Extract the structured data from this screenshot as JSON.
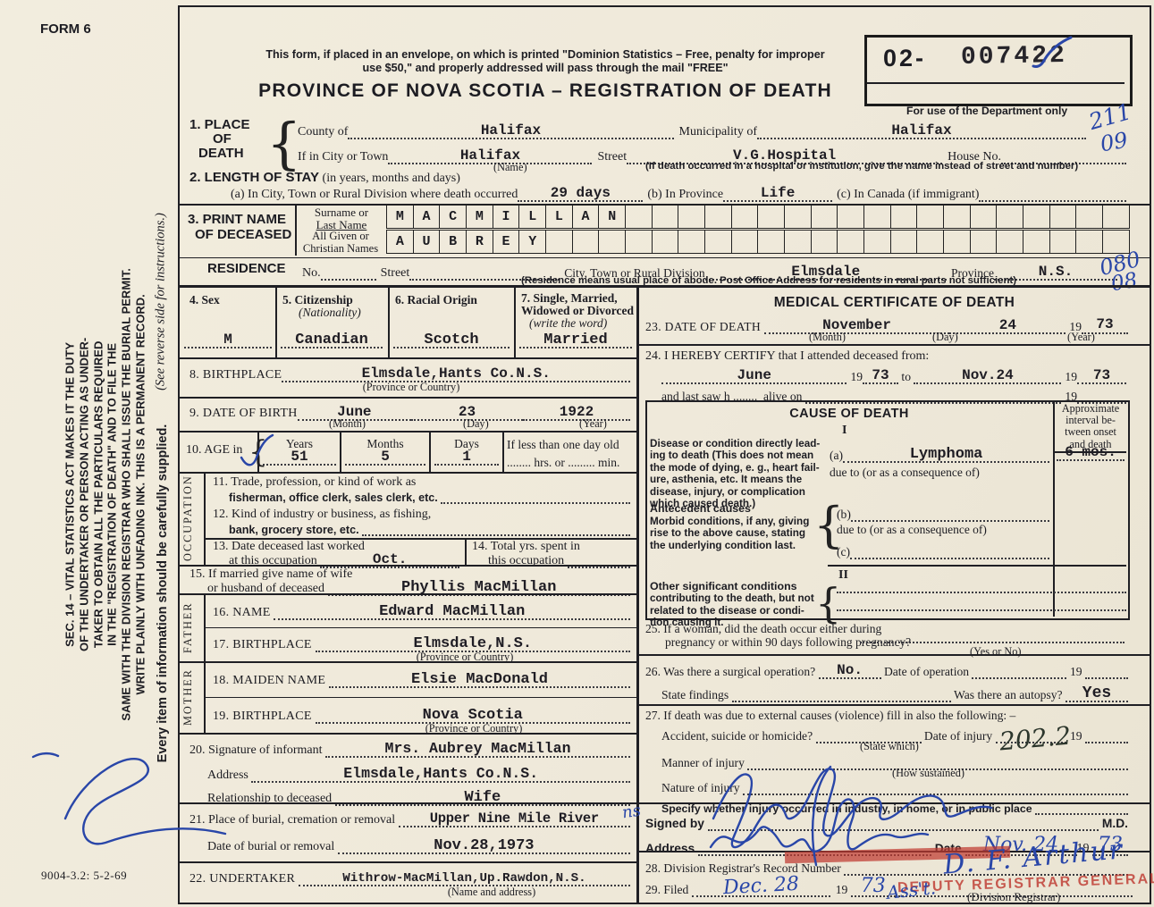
{
  "corner": {
    "form_no": "FORM 6",
    "print_code": "9004-3.2: 5-2-69"
  },
  "header": {
    "notice1": "This form, if placed in an envelope, on which is printed \"Dominion Statistics – Free, penalty for improper",
    "notice2": "use $50,\" and properly addressed will pass through the mail \"FREE\"",
    "title": "PROVINCE OF NOVA SCOTIA – REGISTRATION OF DEATH",
    "reg_prefix": "02-",
    "reg_number": "007422",
    "dept_label": "For use of the Department only",
    "code_top": "211",
    "code_bottom": "09"
  },
  "sidebar": {
    "l1": "SEC. 14 – VITAL STATISTICS ACT MAKES IT THE DUTY",
    "l2": "OF THE UNDERTAKER OR PERSON ACTING AS UNDER-",
    "l3": "TAKER TO OBTAIN ALL THE PARTICULARS REQUIRED",
    "l4": "IN THE \"REGISTRATION OF DEATH\" AND TO FILE THE",
    "l5": "SAME WITH THE DIVISION REGISTRAR WHO SHALL ISSUE THE BURIAL PERMIT.",
    "l6": "WRITE PLAINLY WITH UNFADING INK. THIS IS A PERMANENT RECORD.",
    "supply": "Every item of information should be carefully supplied.",
    "reverse": "(See reverse side for instructions.)"
  },
  "s1": {
    "title1": "1. PLACE",
    "title2": "OF",
    "title3": "DEATH",
    "county_label": "County of",
    "county": "Halifax",
    "municipality_label": "Municipality of",
    "municipality": "Halifax",
    "city_label": "If in City or Town",
    "city": "Halifax",
    "city_sub": "(Name)",
    "street_label": "Street",
    "street": "V.G.Hospital",
    "house_label": "House No.",
    "street_sub": "(If death occurred in a hospital or institution, give the name instead of street and number)"
  },
  "s2": {
    "title": "2. LENGTH OF STAY",
    "title_sub": "(in years, months and days)",
    "a_label": "(a) In City, Town or Rural Division where death occurred",
    "a": "29 days",
    "b_label": "(b) In Province",
    "b": "Life",
    "c_label": "(c) In Canada (if immigrant)"
  },
  "s3": {
    "title1": "3. PRINT NAME",
    "title2": "OF DECEASED",
    "surname_label1": "Surname or",
    "surname_label2": "Last Name",
    "given_label1": "All Given or",
    "given_label2": "Christian Names",
    "surname": "MACMILLAN",
    "given": "AUBREY"
  },
  "res": {
    "title": "RESIDENCE",
    "no_label": "No.",
    "street_label": "Street",
    "city_label": "City, Town or Rural Division",
    "city": "Elmsdale",
    "prov_label": "Province",
    "prov": "N.S.",
    "sub": "(Residence means usual place of abode. Post Office Address for residents in rural parts not sufficient)",
    "code_top": "080",
    "code_bottom": "08"
  },
  "s4": {
    "label": "4. Sex",
    "value": "M"
  },
  "s5": {
    "label": "5. Citizenship",
    "label2": "(Nationality)",
    "value": "Canadian"
  },
  "s6": {
    "label": "6. Racial Origin",
    "value": "Scotch"
  },
  "s7": {
    "label": "7. Single, Married,",
    "label2": "Widowed or Divorced",
    "label3": "(write the word)",
    "value": "Married"
  },
  "s8": {
    "label": "8. BIRTHPLACE",
    "value": "Elmsdale,Hants Co.N.S.",
    "sub": "(Province or Country)"
  },
  "s9": {
    "label": "9. DATE OF BIRTH",
    "month": "June",
    "month_sub": "(Month)",
    "day": "23",
    "day_sub": "(Day)",
    "year": "1922",
    "year_sub": "(Year)"
  },
  "s10": {
    "label": "10. AGE in",
    "years_label": "Years",
    "years": "51",
    "months_label": "Months",
    "months": "5",
    "days_label": "Days",
    "days": "1",
    "less_label": "If less than one day old",
    "less_sub": "........ hrs. or ......... min."
  },
  "occ": {
    "strip": "OCCUPATION",
    "s11a": "11. Trade, profession, or kind of work as",
    "s11b": "fisherman, office clerk, sales clerk, etc. ",
    "s12a": "12. Kind of industry or business, as fishing,",
    "s12b": "bank, grocery store, etc. ",
    "s13a": "13. Date deceased last worked",
    "s13b": "at this occupation ",
    "s13v": "Oct.",
    "s14a": "14. Total yrs. spent in",
    "s14b": "this occupation "
  },
  "s15": {
    "a": "15. If married give name of wife",
    "b": "or husband of deceased ",
    "value": "Phyllis MacMillan"
  },
  "father": {
    "strip": "FATHER",
    "s16_label": "16. NAME ",
    "s16": "Edward MacMillan",
    "s17_label": "17. BIRTHPLACE ",
    "s17": "Elmsdale,N.S.",
    "s17_sub": "(Province or Country)"
  },
  "mother": {
    "strip": "MOTHER",
    "s18_label": "18. MAIDEN NAME ",
    "s18": "Elsie MacDonald",
    "s19_label": "19. BIRTHPLACE ",
    "s19": "Nova Scotia",
    "s19_sub": "(Province or Country)"
  },
  "s20": {
    "label": "20. Signature of informant ",
    "value": "Mrs. Aubrey MacMillan",
    "addr_label": "Address ",
    "addr": "Elmsdale,Hants Co.N.S.",
    "rel_label": "Relationship to deceased ",
    "rel": "Wife"
  },
  "s21": {
    "label": "21. Place of burial, cremation or removal ",
    "value": "Upper Nine Mile River",
    "value_hw": "ns",
    "date_label": "Date of burial or removal ",
    "date": "Nov.28,1973"
  },
  "s22": {
    "label": "22. UNDERTAKER ",
    "value": "Withrow-MacMillan,Up.Rawdon,N.S.",
    "sub": "(Name and address)"
  },
  "med": {
    "title": "MEDICAL CERTIFICATE OF DEATH",
    "s23_label": "23. DATE OF DEATH ",
    "s23_month": "November",
    "s23_month_sub": "(Month)",
    "s23_day": "24",
    "s23_day_sub": "(Day)",
    "s23_y19": "19",
    "s23_year": "73",
    "s23_year_sub": "(Year)",
    "s24_label": "24. I HEREBY CERTIFY that I attended deceased from:",
    "s24_from": "June",
    "s24_from_19": "19",
    "s24_from_y": "73",
    "s24_to_word": " to ",
    "s24_to": "Nov.24",
    "s24_to_19": "19",
    "s24_to_y": "73",
    "s24_saw": "and last saw h ........  alive on ",
    "s24_saw_19": "19"
  },
  "cod": {
    "title": "CAUSE OF DEATH",
    "interval1": "Approximate",
    "interval2": "interval be-",
    "interval3": "tween onset",
    "interval4": "and death",
    "roman1": "I",
    "disease1": "Disease or condition directly lead-",
    "disease2": "ing to death (This does not mean",
    "disease3": "the mode of dying, e. g., heart fail-",
    "disease4": "ure, asthenia, etc. It means the",
    "disease5": "disease, injury, or complication",
    "disease6": "which caused death.)",
    "a_label": "(a)",
    "a_value": "Lymphoma",
    "a_due": "due to (or as a consequence of)",
    "a_interval": "6 mos.",
    "ante1": "Antecedent causes",
    "ante2": "Morbid conditions, if any, giving",
    "ante3": "rise to the above cause, stating",
    "ante4": "the underlying condition last.",
    "b_label": "(b)",
    "b_due": "due to (or as a consequence of)",
    "c_label": "(c)",
    "roman2": "II",
    "other1": "Other significant conditions",
    "other2": "contributing to the death, but not",
    "other3": "related to the disease or condi-",
    "other4": "tion causing it."
  },
  "s25": {
    "a": "25. If a woman, did the death occur either during",
    "b": "pregnancy or within 90 days following pregnancy?",
    "sub": "(Yes or No)"
  },
  "s26": {
    "label": "26. Was there a surgical operation? ",
    "value": "No.",
    "date_label": " Date of operation ",
    "y19": "19 ",
    "find_label": "State findings ",
    "autopsy_label": " Was there an autopsy? ",
    "autopsy": "Yes"
  },
  "s27": {
    "label": "27. If death was due to external causes (violence) fill in also the following: –",
    "acc_label": "Accident, suicide or homicide? ",
    "acc_sub": "(State which)",
    "inj_label": " Date of injury ",
    "y19": "19 ",
    "manner_label": "Manner of injury ",
    "manner_hw": "202.2",
    "manner_sub": "(How sustained)",
    "nature_label": "Nature of injury ",
    "specify_label": "Specify whether injury occurred in industry, in home, or in public place "
  },
  "sign": {
    "label": "Signed by ",
    "md": " M.D.",
    "addr_label": "Address ",
    "date_label": " Date ",
    "date_hw": "Nov. 24",
    "y19": "19 ",
    "year_hw": "73"
  },
  "s28": {
    "label": "28. Division Registrar's Record Number "
  },
  "s29": {
    "label": "29. Filed ",
    "date_hw": "Dec. 28",
    "y19": "19 ",
    "year_hw": "73",
    "asst_hw": "Ass't.",
    "registrar_hw": "D. F. Arthur",
    "stamp": "DEPUTY REGISTRAR GENERAL",
    "sub": "(Division Registrar)"
  }
}
